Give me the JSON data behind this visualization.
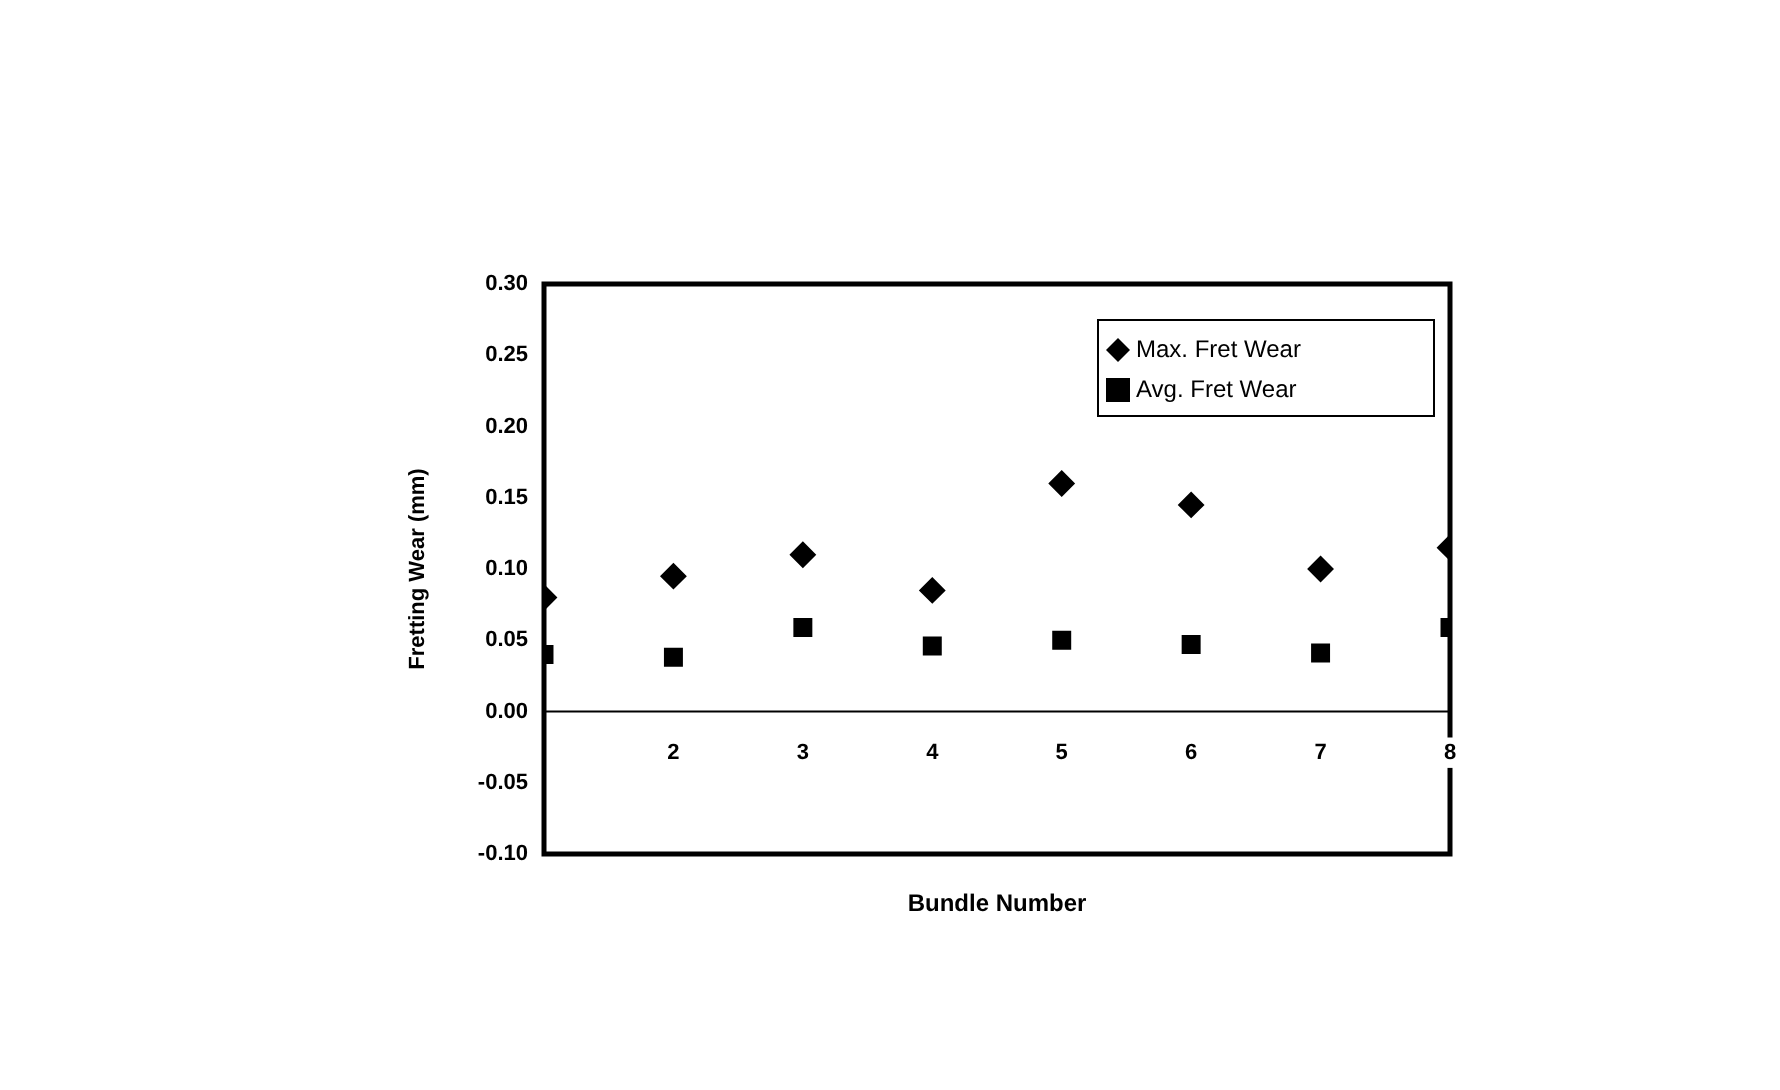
{
  "chart_data": {
    "type": "scatter",
    "xlabel": "Bundle Number",
    "ylabel": "Fretting Wear (mm)",
    "x": [
      1,
      2,
      3,
      4,
      5,
      6,
      7,
      8
    ],
    "series": [
      {
        "name": "Max. Fret Wear",
        "color": "#000000",
        "marker": "diamond",
        "values": [
          0.08,
          0.095,
          0.11,
          0.085,
          0.16,
          0.145,
          0.1,
          0.115
        ]
      },
      {
        "name": "Avg. Fret Wear",
        "color": "#000000",
        "marker": "square",
        "values": [
          0.04,
          0.038,
          0.059,
          0.046,
          0.05,
          0.047,
          0.041,
          0.059
        ]
      }
    ],
    "xlim": [
      1,
      8
    ],
    "xticks": [
      2,
      3,
      4,
      5,
      6,
      7,
      8
    ],
    "ylim": [
      -0.1,
      0.3
    ],
    "yticks": [
      {
        "value": -0.1,
        "label": "-0.10"
      },
      {
        "value": -0.05,
        "label": "-0.05"
      },
      {
        "value": 0,
        "label": "0.00"
      },
      {
        "value": 0.05,
        "label": "0.05"
      },
      {
        "value": 0.1,
        "label": "0.10"
      },
      {
        "value": 0.15,
        "label": "0.15"
      },
      {
        "value": 0.2,
        "label": "0.20"
      },
      {
        "value": 0.25,
        "label": "0.25"
      },
      {
        "value": 0.3,
        "label": "0.30"
      }
    ],
    "grid": false,
    "legend": "top right"
  }
}
